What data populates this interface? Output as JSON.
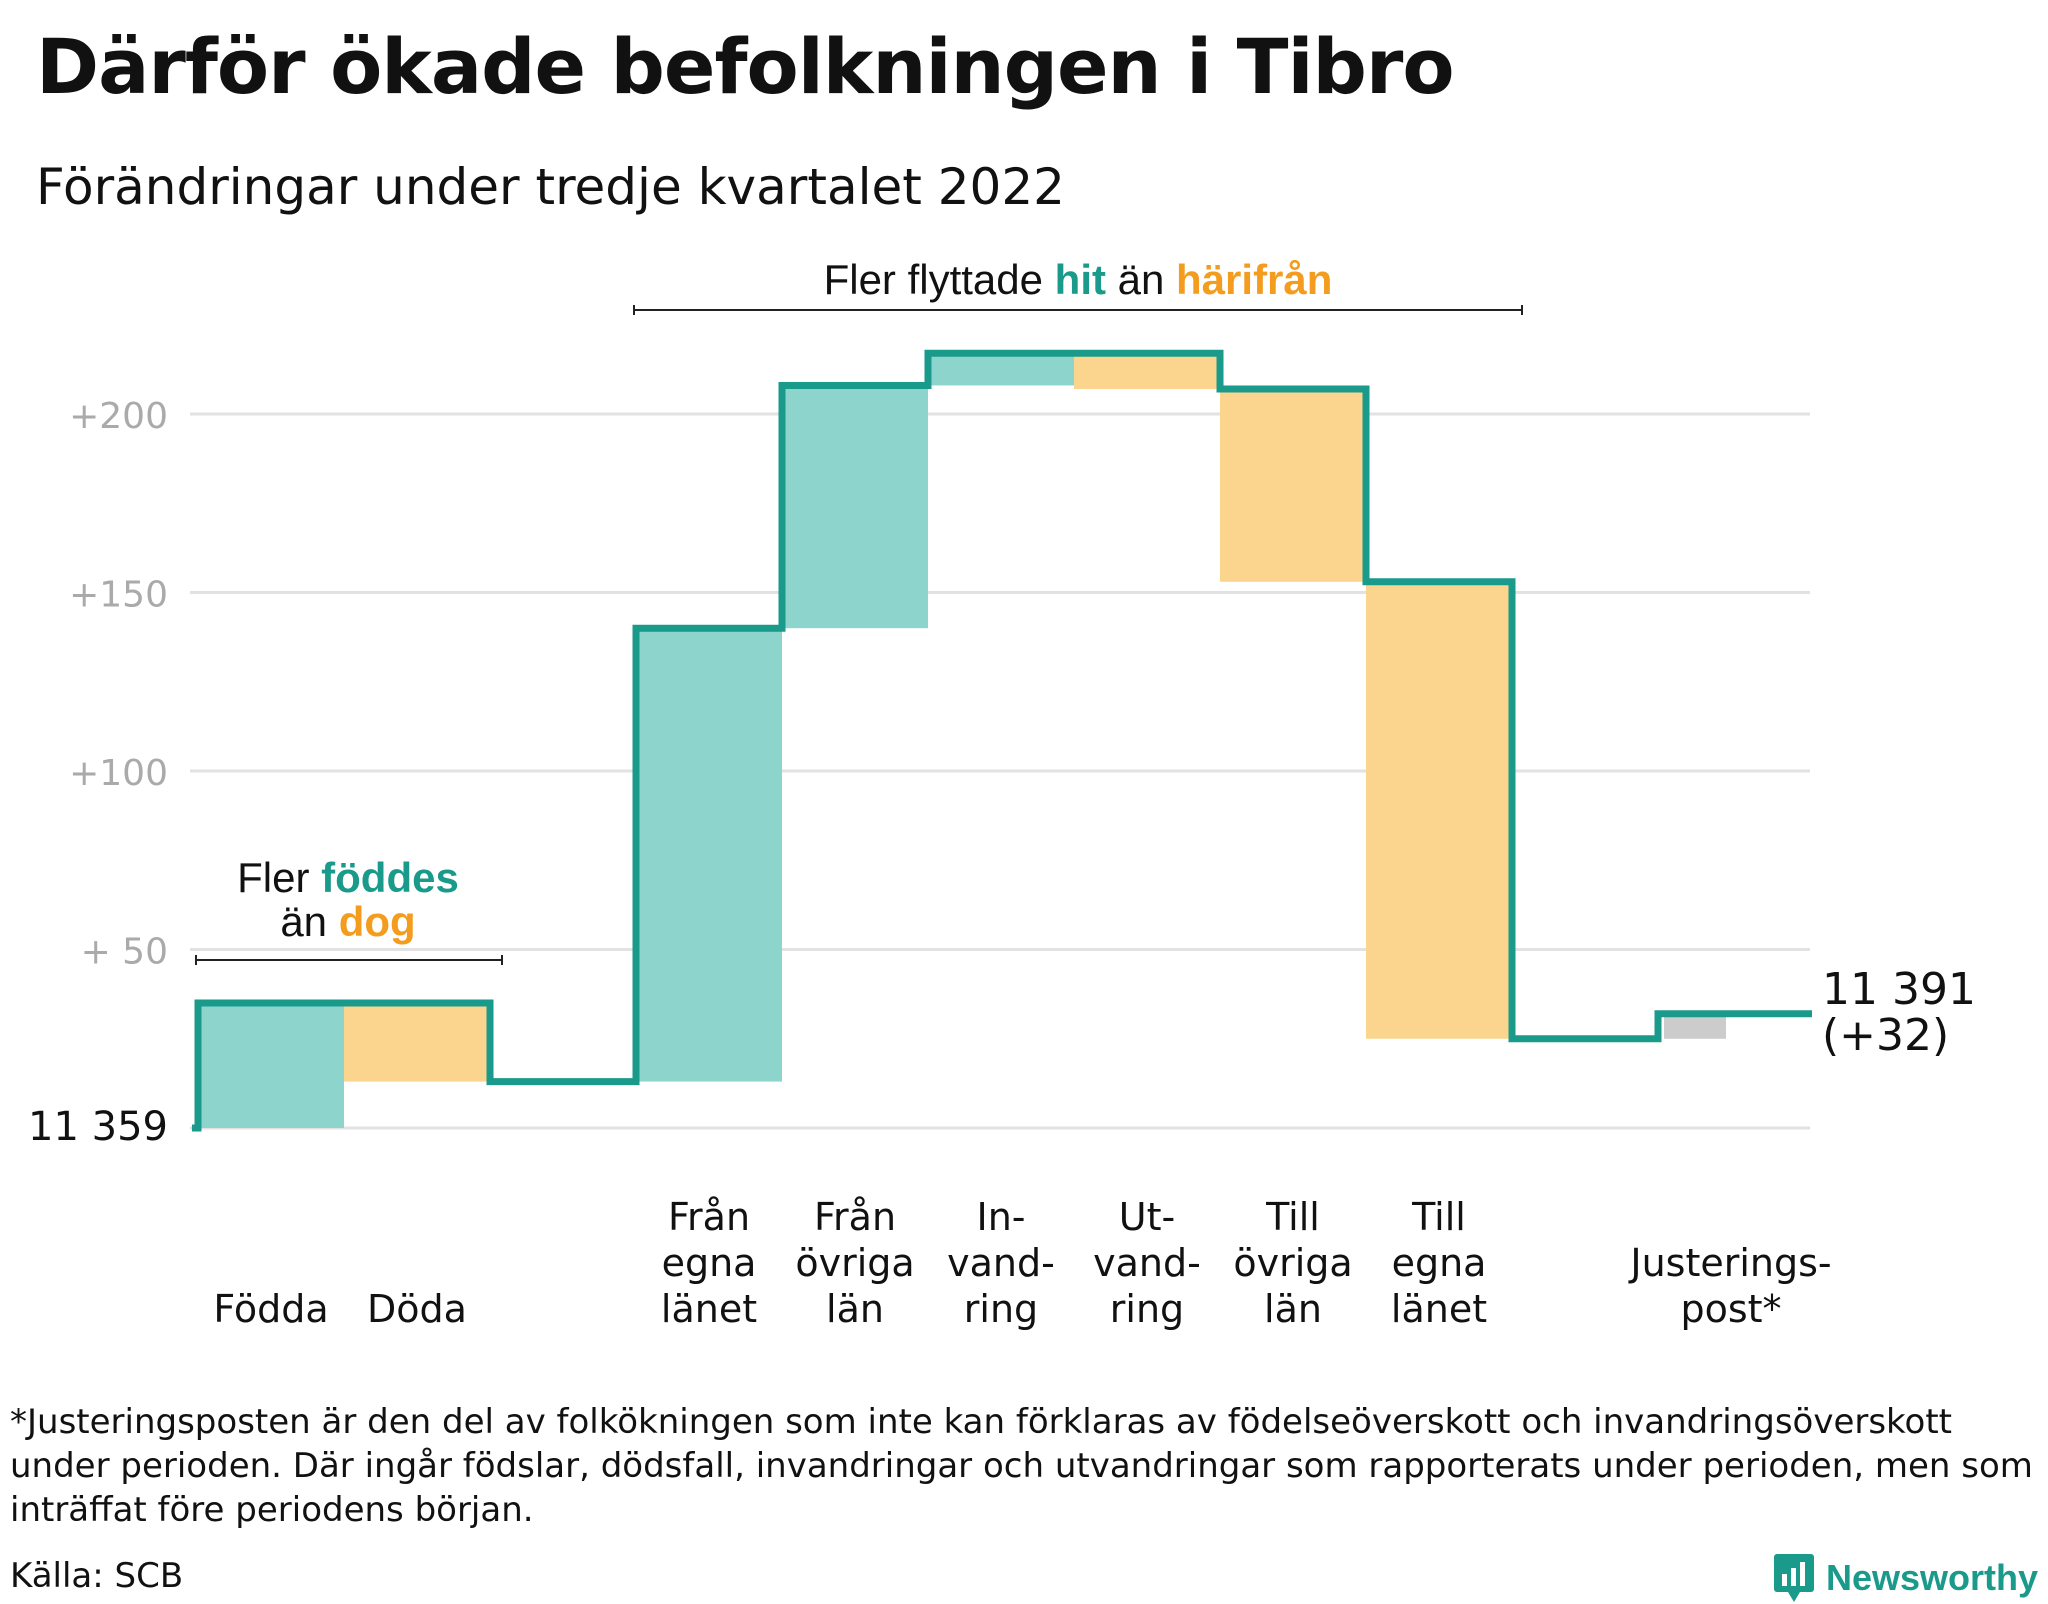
{
  "title": "Därför ökade befolkningen i Tibro",
  "subtitle": "Förändringar under tredje kvartalet 2022",
  "footnote": "*Justeringsposten är den del av folkökningen som inte kan förklaras av födelseöverskott och invandringsöverskott under perioden. Där ingår födslar, dödsfall, invandringar och utvandringar som rapporterats under perioden, men som inträffat före periodens början.",
  "source": "Källa: SCB",
  "brand": "Newsworthy",
  "colors": {
    "increase": "#8dd4cc",
    "decrease": "#fbd58d",
    "adjustment": "#cccccc",
    "line": "#1a9a8a",
    "teal_text": "#1a9a8a",
    "orange_text": "#f39c1e",
    "grid": "#e2e2e2",
    "tick": "#aaaaaa"
  },
  "chart_data": {
    "type": "waterfall",
    "start_value": 11359,
    "start_label": "11 359",
    "end_label_value": "11 391",
    "end_label_change": "(+32)",
    "yticks": [
      {
        "value": 200,
        "label": "+200"
      },
      {
        "value": 150,
        "label": "+150"
      },
      {
        "value": 100,
        "label": "+100"
      },
      {
        "value": 50,
        "label": "+ 50"
      }
    ],
    "ylim": [
      0,
      220
    ],
    "steps": [
      {
        "label_lines": [
          "Födda"
        ],
        "change": 35,
        "kind": "increase"
      },
      {
        "label_lines": [
          "Döda"
        ],
        "change": -22,
        "kind": "decrease"
      },
      {
        "label_lines": [],
        "change": 0,
        "kind": "none"
      },
      {
        "label_lines": [
          "Från",
          "egna",
          "länet"
        ],
        "change": 127,
        "kind": "increase"
      },
      {
        "label_lines": [
          "Från",
          "övriga",
          "län"
        ],
        "change": 68,
        "kind": "increase"
      },
      {
        "label_lines": [
          "In-",
          "vand-",
          "ring"
        ],
        "change": 9,
        "kind": "increase"
      },
      {
        "label_lines": [
          "Ut-",
          "vand-",
          "ring"
        ],
        "change": -10,
        "kind": "decrease"
      },
      {
        "label_lines": [
          "Till",
          "övriga",
          "län"
        ],
        "change": -54,
        "kind": "decrease"
      },
      {
        "label_lines": [
          "Till",
          "egna",
          "länet"
        ],
        "change": -128,
        "kind": "decrease"
      },
      {
        "label_lines": [],
        "change": 0,
        "kind": "none"
      },
      {
        "label_lines": [
          "Justerings-",
          "post*"
        ],
        "change": 7,
        "kind": "adjustment"
      }
    ],
    "annotations": {
      "births": {
        "line1": "Fler ",
        "line1_hi": "föddes",
        "line2": "än ",
        "line2_hi": "dog"
      },
      "migration": {
        "pre": "Fler flyttade ",
        "hi1": "hit",
        "mid": " än ",
        "hi2": "härifrån"
      }
    }
  }
}
